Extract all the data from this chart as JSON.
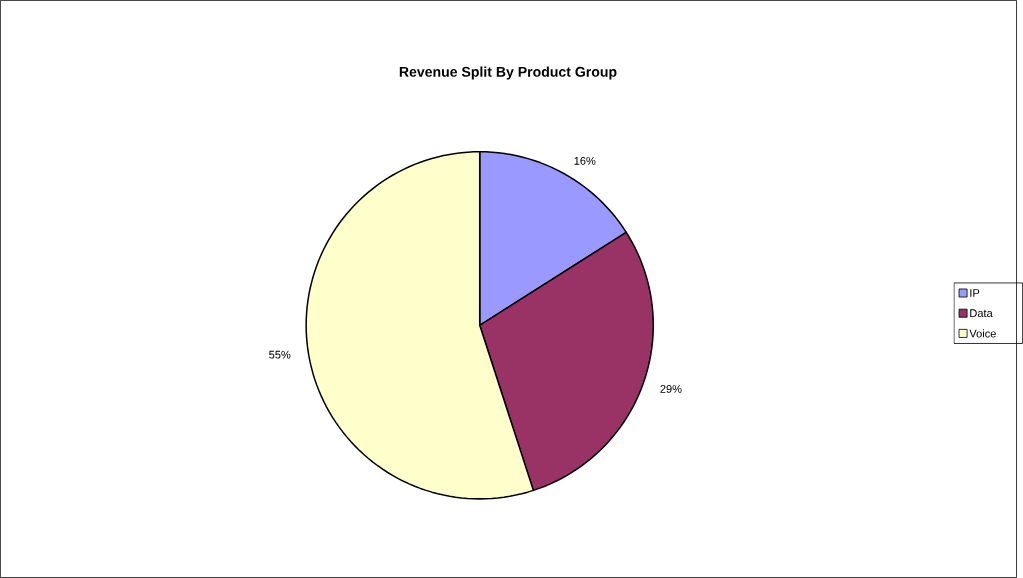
{
  "chart_data": {
    "type": "pie",
    "title": "Revenue Split By Product Group",
    "categories": [
      "IP",
      "Data",
      "Voice"
    ],
    "values": [
      16,
      29,
      55
    ],
    "colors": [
      "#9999ff",
      "#993366",
      "#ffffcc"
    ],
    "value_labels": [
      "16%",
      "29%",
      "55%"
    ],
    "legend": "right"
  }
}
